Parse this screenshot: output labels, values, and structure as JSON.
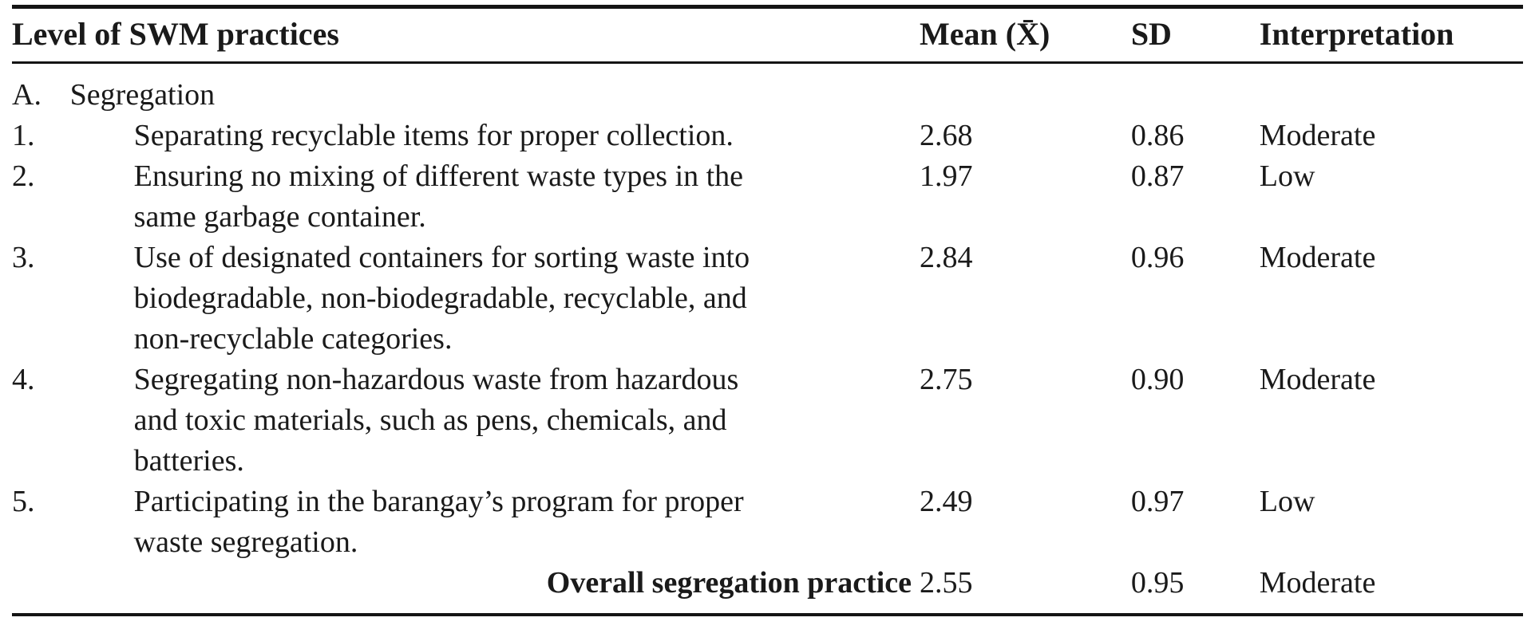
{
  "table": {
    "headers": {
      "practice": "Level of SWM practices",
      "mean": "Mean (X̄)",
      "sd": "SD",
      "interpretation": "Interpretation"
    },
    "section": {
      "label": "A.",
      "title": "Segregation"
    },
    "rows": [
      {
        "num": "1.",
        "text": "Separating recyclable items for proper collection.",
        "mean": "2.68",
        "sd": "0.86",
        "interpretation": "Moderate"
      },
      {
        "num": "2.",
        "text": "Ensuring no mixing of different waste types in the same garbage container.",
        "mean": "1.97",
        "sd": "0.87",
        "interpretation": "Low"
      },
      {
        "num": "3.",
        "text": "Use of designated containers for sorting waste into biodegradable, non-biodegradable, recyclable, and non-recyclable categories.",
        "mean": "2.84",
        "sd": "0.96",
        "interpretation": "Moderate"
      },
      {
        "num": "4.",
        "text": "Segregating non-hazardous waste from hazardous and toxic materials, such as pens, chemicals, and batteries.",
        "mean": "2.75",
        "sd": "0.90",
        "interpretation": "Moderate"
      },
      {
        "num": "5.",
        "text": "Participating in the barangay’s program for proper waste segregation.",
        "mean": "2.49",
        "sd": "0.97",
        "interpretation": "Low"
      }
    ],
    "overall": {
      "label": "Overall segregation practice",
      "mean": "2.55",
      "sd": "0.95",
      "interpretation": "Moderate"
    }
  }
}
